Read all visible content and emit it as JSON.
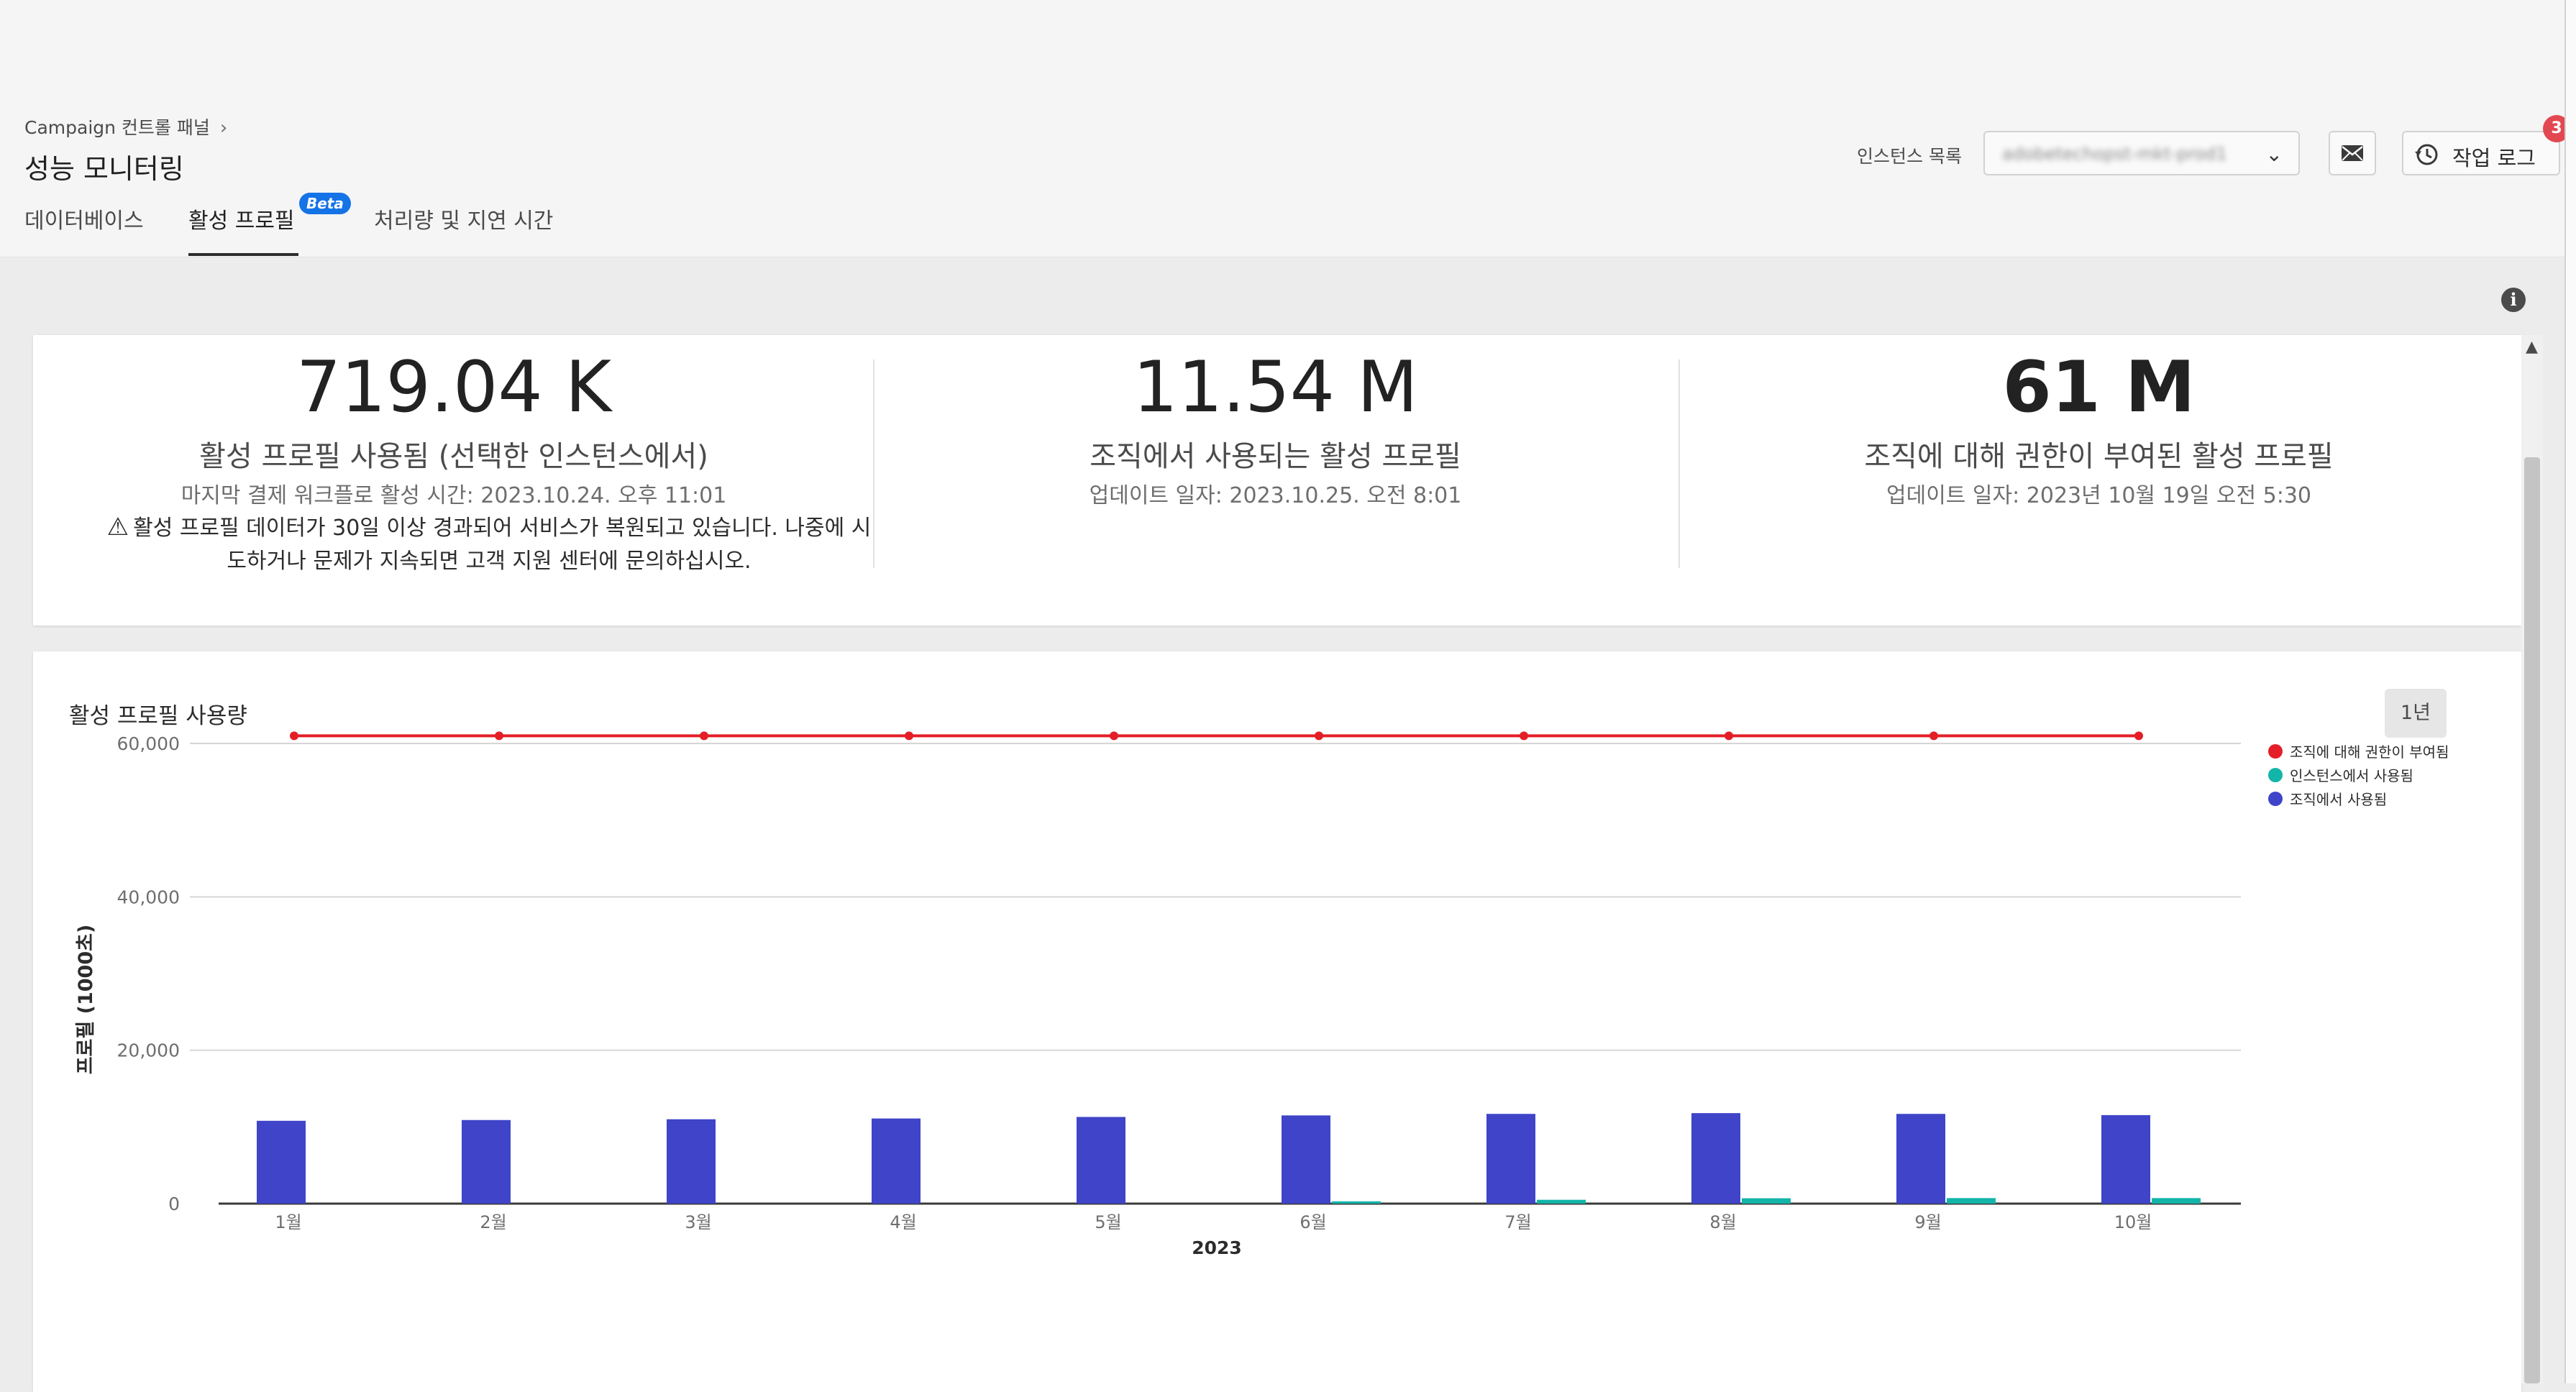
{
  "header": {
    "breadcrumb": "Campaign 컨트롤 패널",
    "breadcrumb_chevron": "›",
    "title": "성능 모니터링",
    "tabs": [
      {
        "label": "데이터베이스"
      },
      {
        "label": "활성 프로필",
        "badge": "Beta",
        "selected": true
      },
      {
        "label": "처리량 및 지연 시간"
      }
    ],
    "instance_label": "인스턴스 목록",
    "instance_value": "adobetechopst-mkt-prod1",
    "job_log_label": "작업 로그",
    "job_log_count": "3"
  },
  "stats": [
    {
      "value": "719.04 K",
      "label": "활성 프로필 사용됨 (선택한 인스턴스에서)",
      "sub": "마지막 결제 워크플로 활성 시간: 2023.10.24. 오후 11:01",
      "warning_line1": "활성 프로필 데이터가 30일 이상 경과되어 서비스가 복원되고 있습니다. 나중에 시",
      "warning_line2": "도하거나 문제가 지속되면 고객 지원 센터에 문의하십시오."
    },
    {
      "value": "11.54 M",
      "label": "조직에서 사용되는 활성 프로필",
      "sub": "업데이트 일자: 2023.10.25. 오전 8:01"
    },
    {
      "value": "61 M",
      "label": "조직에 대해 권한이 부여된 활성 프로필",
      "sub": "업데이트 일자: 2023년 10월 19일 오전 5:30"
    }
  ],
  "chart_section": {
    "title": "활성 프로필 사용량",
    "period_button": "1년"
  },
  "chart_data": {
    "type": "bar",
    "xlabel": "2023",
    "ylabel": "프로필 (1000초)",
    "ylim": [
      0,
      60000
    ],
    "yticks": [
      "0",
      "20,000",
      "40,000",
      "60,000"
    ],
    "ytick_values": [
      0,
      20000,
      40000,
      60000
    ],
    "categories": [
      "1월",
      "2월",
      "3월",
      "4월",
      "5월",
      "6월",
      "7월",
      "8월",
      "9월",
      "10월"
    ],
    "grid": true,
    "legend_position": "top-right",
    "series": [
      {
        "name": "조직에 대해 권한이 부여됨",
        "type": "line",
        "color": "#e41e26",
        "values": [
          61000,
          61000,
          61000,
          61000,
          61000,
          61000,
          61000,
          61000,
          61000,
          61000
        ]
      },
      {
        "name": "인스턴스에서 사용됨",
        "type": "bar",
        "color": "#12b5a8",
        "values": [
          0,
          0,
          0,
          0,
          0,
          300,
          500,
          700,
          720,
          720
        ]
      },
      {
        "name": "조직에서 사용됨",
        "type": "bar",
        "color": "#3f44c8",
        "values": [
          10800,
          10900,
          11000,
          11100,
          11300,
          11500,
          11700,
          11800,
          11700,
          11540
        ]
      }
    ]
  }
}
